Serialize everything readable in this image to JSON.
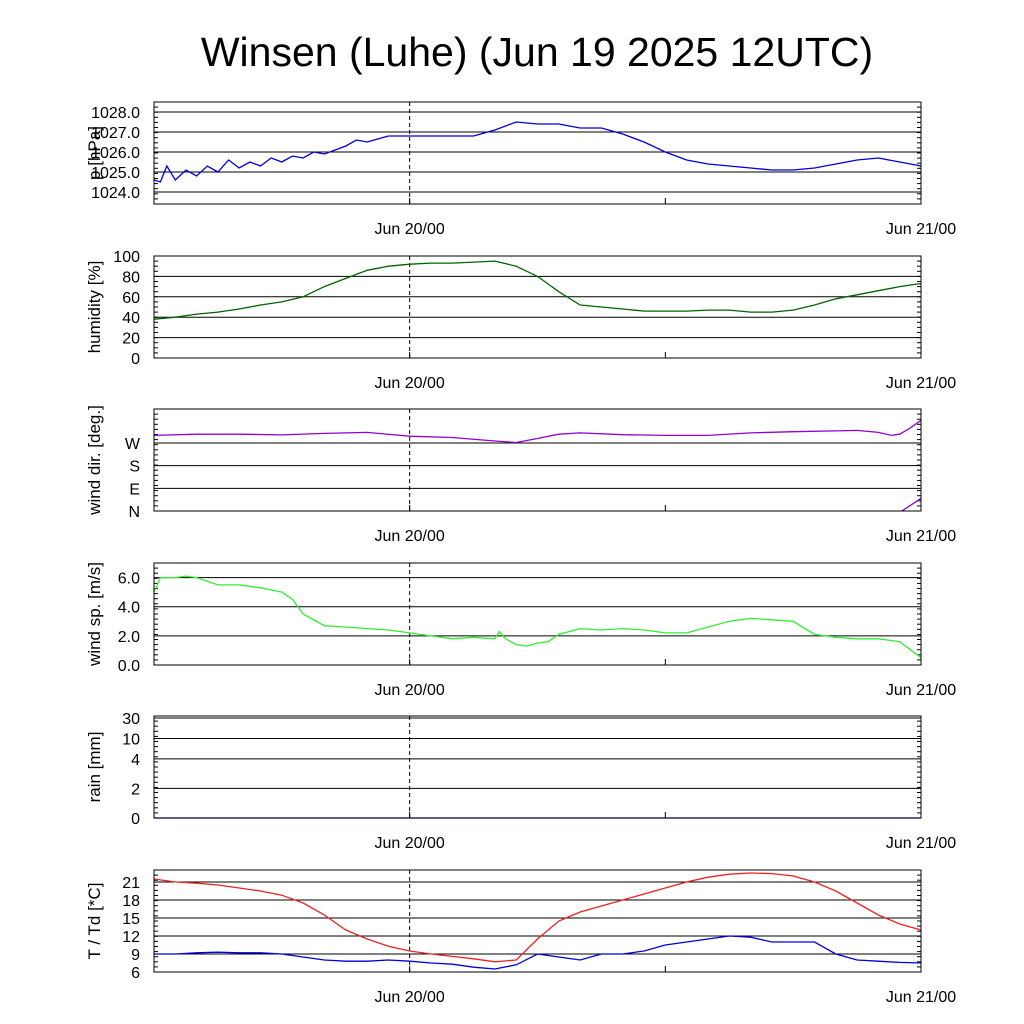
{
  "title": "Winsen (Luhe) (Jun 19 2025 12UTC)",
  "x_tick_labels": [
    "Jun 20/00",
    "Jun 21/00"
  ],
  "chart_data": [
    {
      "type": "line",
      "ylabel": "p [hPa]",
      "ylim": [
        1023.4,
        1028.5
      ],
      "yticks": [
        1024.0,
        1025.0,
        1026.0,
        1027.0,
        1028.0
      ],
      "ytick_labels": [
        "1024.0",
        "1025.0",
        "1026.0",
        "1027.0",
        "1028.0"
      ],
      "x_hours_from_start": [
        0,
        0.3,
        0.6,
        1,
        1.5,
        2,
        2.5,
        3,
        3.5,
        4,
        4.5,
        5,
        5.5,
        6,
        6.5,
        7,
        7.5,
        8,
        8.5,
        9,
        9.5,
        10,
        11,
        12,
        13,
        14,
        15,
        16,
        17,
        18,
        19,
        20,
        21,
        22,
        23,
        24,
        25,
        26,
        27,
        28,
        29,
        30,
        31,
        32,
        33,
        34,
        35,
        36
      ],
      "series": [
        {
          "color": "#0000dd",
          "values": [
            1024.6,
            1024.5,
            1025.3,
            1024.6,
            1025.1,
            1024.8,
            1025.3,
            1025.0,
            1025.6,
            1025.2,
            1025.5,
            1025.3,
            1025.7,
            1025.5,
            1025.8,
            1025.7,
            1026.0,
            1025.9,
            1026.1,
            1026.3,
            1026.6,
            1026.5,
            1026.8,
            1026.8,
            1026.8,
            1026.8,
            1026.8,
            1027.1,
            1027.5,
            1027.4,
            1027.4,
            1027.2,
            1027.2,
            1026.9,
            1026.5,
            1026.0,
            1025.6,
            1025.4,
            1025.3,
            1025.2,
            1025.1,
            1025.1,
            1025.2,
            1025.4,
            1025.6,
            1025.7,
            1025.5,
            1025.3
          ]
        }
      ]
    },
    {
      "type": "line",
      "ylabel": "humidity [%]",
      "ylim": [
        0,
        100
      ],
      "yticks": [
        0,
        20,
        40,
        60,
        80,
        100
      ],
      "ytick_labels": [
        "0",
        "20",
        "40",
        "60",
        "80",
        "100"
      ],
      "x_hours_from_start": [
        0,
        1,
        2,
        3,
        4,
        5,
        6,
        7,
        8,
        9,
        10,
        11,
        12,
        13,
        14,
        15,
        16,
        17,
        18,
        19,
        20,
        21,
        22,
        23,
        24,
        25,
        26,
        27,
        28,
        29,
        30,
        31,
        32,
        33,
        34,
        35,
        36
      ],
      "series": [
        {
          "color": "#006400",
          "values": [
            38,
            40,
            43,
            45,
            48,
            52,
            55,
            60,
            70,
            78,
            86,
            90,
            92,
            93,
            93,
            94,
            95,
            90,
            80,
            65,
            52,
            50,
            48,
            46,
            46,
            46,
            47,
            47,
            45,
            45,
            47,
            52,
            58,
            62,
            66,
            70,
            73
          ]
        }
      ]
    },
    {
      "type": "line",
      "ylabel": "wind dir. [deg.]",
      "ylim": [
        0,
        405
      ],
      "yticks": [
        0,
        90,
        180,
        270
      ],
      "ytick_labels": [
        "N",
        "E",
        "S",
        "W"
      ],
      "x_hours_from_start": [
        0,
        2,
        4,
        6,
        8,
        10,
        12,
        14,
        16,
        17,
        18,
        19,
        20,
        22,
        24,
        26,
        28,
        30,
        32,
        33,
        34,
        34.6,
        35,
        35.5,
        36
      ],
      "series": [
        {
          "color": "#9400d3",
          "values": [
            300,
            305,
            305,
            302,
            308,
            312,
            297,
            292,
            278,
            272,
            288,
            305,
            310,
            303,
            300,
            300,
            310,
            315,
            318,
            320,
            312,
            300,
            305,
            330,
            360
          ]
        },
        {
          "color": "#9400d3",
          "name_hidden": true,
          "values_wrapped": [
            [
              35.1,
              0
            ],
            [
              36,
              50
            ]
          ]
        }
      ]
    },
    {
      "type": "line",
      "ylabel": "wind sp. [m/s]",
      "ylim": [
        0,
        7
      ],
      "yticks": [
        0,
        2,
        4,
        6
      ],
      "ytick_labels": [
        "0.0",
        "2.0",
        "4.0",
        "6.0"
      ],
      "x_hours_from_start": [
        0,
        0.3,
        1,
        1.5,
        2,
        3,
        4,
        5,
        6,
        6.5,
        7,
        8,
        9,
        10,
        11,
        12,
        13,
        14,
        15,
        16,
        16.2,
        16.5,
        17,
        17.5,
        18,
        18.5,
        19,
        20,
        21,
        22,
        23,
        24,
        25,
        26,
        27,
        28,
        29,
        30,
        31,
        32,
        33,
        34,
        35,
        36
      ],
      "series": [
        {
          "color": "#33ee33",
          "values": [
            5.0,
            6.0,
            6.0,
            6.1,
            6.0,
            5.5,
            5.5,
            5.3,
            5.0,
            4.5,
            3.5,
            2.7,
            2.6,
            2.5,
            2.4,
            2.2,
            2.0,
            1.8,
            1.9,
            1.8,
            2.3,
            1.8,
            1.4,
            1.3,
            1.5,
            1.6,
            2.1,
            2.5,
            2.4,
            2.5,
            2.4,
            2.2,
            2.2,
            2.6,
            3.0,
            3.2,
            3.1,
            3.0,
            2.1,
            1.9,
            1.8,
            1.8,
            1.6,
            0.5
          ]
        }
      ]
    },
    {
      "type": "line",
      "ylabel": "rain [mm]",
      "ylim": [
        0,
        30
      ],
      "yticks": [
        0,
        2,
        4,
        10,
        30
      ],
      "ytick_labels": [
        "0",
        "2",
        "4",
        "10",
        "30"
      ],
      "x_hours_from_start": [
        0,
        36
      ],
      "series": [
        {
          "color": "#0000dd",
          "values": [
            0,
            0
          ]
        }
      ]
    },
    {
      "type": "line",
      "ylabel": "T / Td [*C]",
      "ylim": [
        6,
        23
      ],
      "yticks": [
        6,
        9,
        12,
        15,
        18,
        21
      ],
      "ytick_labels": [
        "6",
        "9",
        "12",
        "15",
        "18",
        "21"
      ],
      "x_hours_from_start": [
        0,
        1,
        2,
        3,
        4,
        5,
        6,
        7,
        8,
        9,
        10,
        11,
        12,
        13,
        14,
        15,
        16,
        17,
        18,
        19,
        20,
        21,
        22,
        23,
        24,
        25,
        26,
        27,
        28,
        29,
        30,
        31,
        32,
        33,
        34,
        35,
        36
      ],
      "series": [
        {
          "color": "#ee2222",
          "values": [
            21.5,
            21.0,
            20.8,
            20.5,
            20.0,
            19.5,
            18.8,
            17.5,
            15.5,
            13.0,
            11.5,
            10.3,
            9.5,
            9.0,
            8.6,
            8.2,
            7.7,
            8.0,
            11.5,
            14.5,
            16.0,
            17.0,
            18.0,
            19.0,
            20.0,
            21.0,
            21.8,
            22.3,
            22.5,
            22.4,
            22.0,
            21.0,
            19.5,
            17.5,
            15.5,
            14.0,
            13.0
          ]
        },
        {
          "color": "#0000dd",
          "values": [
            9.0,
            9.0,
            9.2,
            9.3,
            9.2,
            9.2,
            9.0,
            8.5,
            8.0,
            7.8,
            7.8,
            8.0,
            7.8,
            7.5,
            7.3,
            6.8,
            6.5,
            7.2,
            9.0,
            8.5,
            8.0,
            9.0,
            9.0,
            9.5,
            10.5,
            11.0,
            11.5,
            12.0,
            11.8,
            11.0,
            11.0,
            11.0,
            9.0,
            8.0,
            7.8,
            7.6,
            7.5
          ]
        }
      ]
    }
  ]
}
